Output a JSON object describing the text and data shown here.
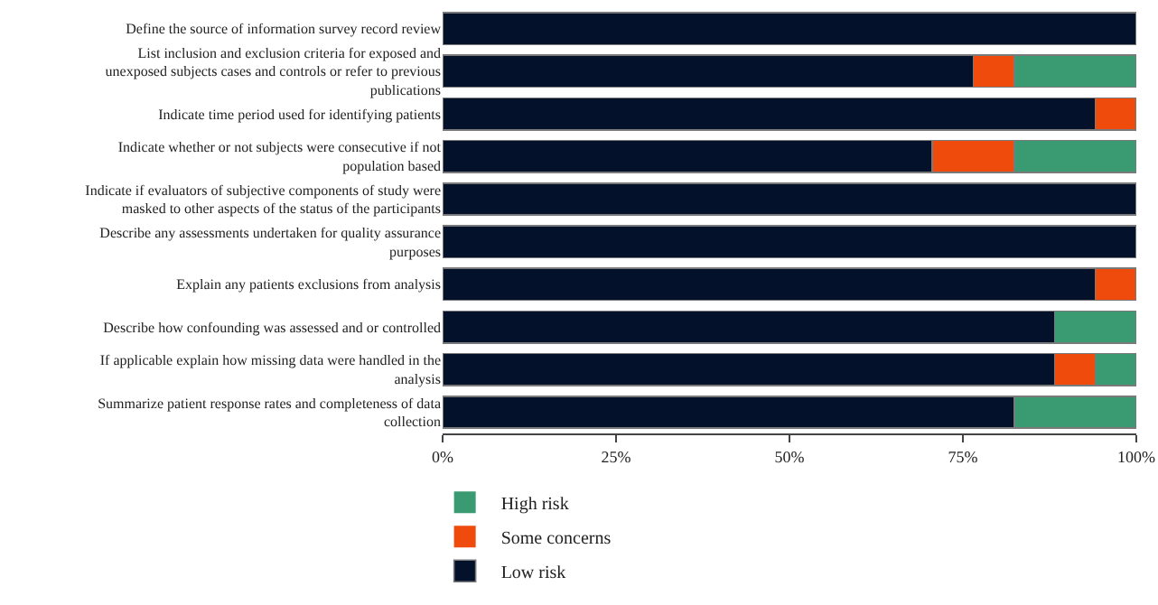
{
  "chart_data": {
    "type": "bar",
    "orientation": "horizontal",
    "stacked": true,
    "categories": [
      "Define the source of information survey record review",
      "List inclusion and exclusion criteria for exposed and unexposed subjects cases and controls or refer to previous publications",
      "Indicate time period used for identifying patients",
      "Indicate whether or not subjects were consecutive if not population based",
      "Indicate if evaluators of subjective components of study were masked to other aspects of the status of the participants",
      "Describe any assessments undertaken for quality assurance purposes",
      "Explain any patients exclusions from analysis",
      "Describe how confounding was assessed and or controlled",
      "If applicable explain how missing data were handled in the analysis",
      "Summarize patient response rates and completeness of data collection"
    ],
    "series": [
      {
        "name": "Low risk",
        "color": "#03112b",
        "values": [
          100,
          76.5,
          94.1,
          70.6,
          100,
          100,
          94.1,
          88.2,
          88.2,
          82.4
        ]
      },
      {
        "name": "Some concerns",
        "color": "#ee4b0c",
        "values": [
          0,
          5.9,
          5.9,
          11.8,
          0,
          0,
          5.9,
          0,
          5.9,
          0
        ]
      },
      {
        "name": "High risk",
        "color": "#3a9a71",
        "values": [
          0,
          17.6,
          0,
          17.6,
          0,
          0,
          0,
          11.8,
          5.9,
          17.6
        ]
      }
    ],
    "xlim": [
      0,
      100
    ],
    "xticks": [
      {
        "value": 0,
        "label": "0%"
      },
      {
        "value": 25,
        "label": "25%"
      },
      {
        "value": 50,
        "label": "50%"
      },
      {
        "value": 75,
        "label": "75%"
      },
      {
        "value": 100,
        "label": "100%"
      }
    ],
    "grid": false,
    "legend": "bottom left"
  }
}
